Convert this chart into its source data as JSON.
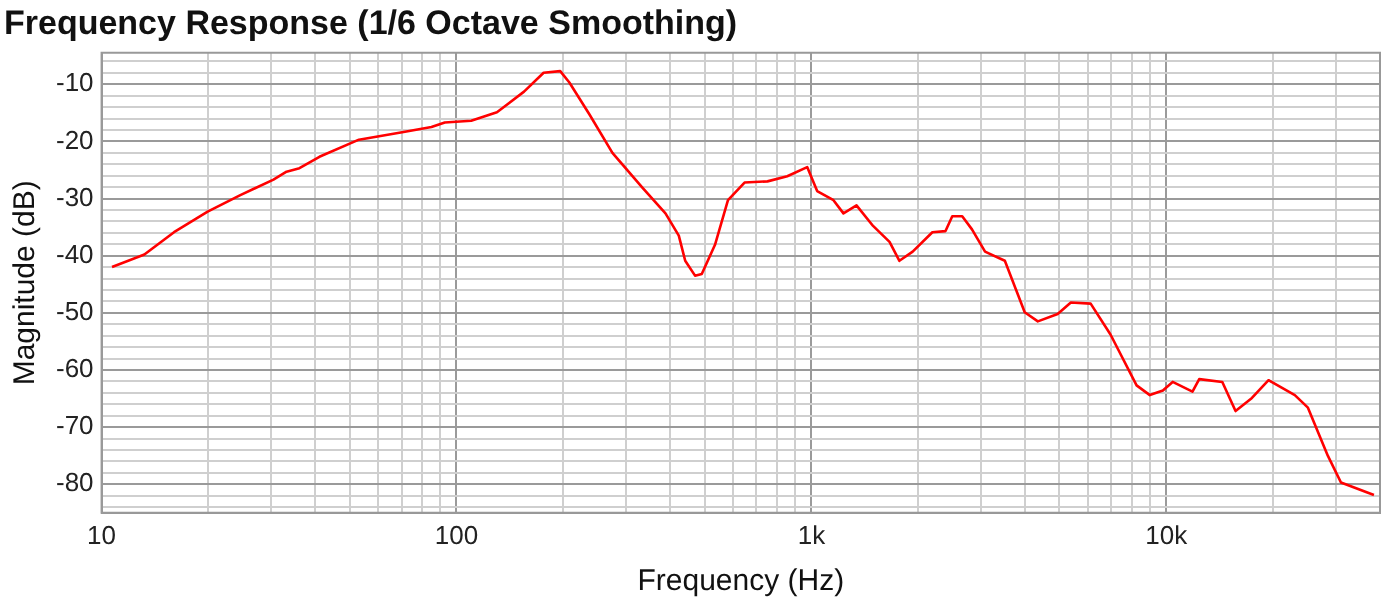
{
  "chart_data": {
    "type": "line",
    "title": "Frequency Response (1/6 Octave Smoothing)",
    "xlabel": "Frequency (Hz)",
    "ylabel": "Magnitude (dB)",
    "log": "x",
    "grid": true,
    "marker": "none",
    "line_style": "solid",
    "xlim": [
      10,
      40000
    ],
    "ylim": [
      -85,
      -4.5
    ],
    "xticks": [
      10,
      {
        "value": 20,
        "label": null
      },
      {
        "value": 30,
        "label": null
      },
      {
        "value": 40,
        "label": null
      },
      {
        "value": 50,
        "label": null
      },
      {
        "value": 60,
        "label": null
      },
      {
        "value": 70,
        "label": null
      },
      {
        "value": 80,
        "label": null
      },
      {
        "value": 90,
        "label": null
      },
      100,
      {
        "value": 200,
        "label": null
      },
      {
        "value": 300,
        "label": null
      },
      {
        "value": 400,
        "label": null
      },
      {
        "value": 500,
        "label": null
      },
      {
        "value": 600,
        "label": null
      },
      {
        "value": 700,
        "label": null
      },
      {
        "value": 800,
        "label": null
      },
      {
        "value": 900,
        "label": null
      },
      {
        "value": 1000,
        "label": "1k"
      },
      {
        "value": 2000,
        "label": null
      },
      {
        "value": 3000,
        "label": null
      },
      {
        "value": 4000,
        "label": null
      },
      {
        "value": 5000,
        "label": null
      },
      {
        "value": 6000,
        "label": null
      },
      {
        "value": 7000,
        "label": null
      },
      {
        "value": 8000,
        "label": null
      },
      {
        "value": 9000,
        "label": null
      },
      {
        "value": 10000,
        "label": "10k"
      },
      {
        "value": 20000,
        "label": null
      },
      {
        "value": 30000,
        "label": null
      }
    ],
    "yticks": [
      {
        "value": -84,
        "label": null
      },
      {
        "value": -82,
        "label": null
      },
      -80,
      {
        "value": -78,
        "label": null
      },
      {
        "value": -76,
        "label": null
      },
      {
        "value": -74,
        "label": null
      },
      {
        "value": -72,
        "label": null
      },
      -70,
      {
        "value": -68,
        "label": null
      },
      {
        "value": -66,
        "label": null
      },
      {
        "value": -64,
        "label": null
      },
      {
        "value": -62,
        "label": null
      },
      -60,
      {
        "value": -58,
        "label": null
      },
      {
        "value": -56,
        "label": null
      },
      {
        "value": -54,
        "label": null
      },
      {
        "value": -52,
        "label": null
      },
      -50,
      {
        "value": -48,
        "label": null
      },
      {
        "value": -46,
        "label": null
      },
      {
        "value": -44,
        "label": null
      },
      {
        "value": -42,
        "label": null
      },
      -40,
      {
        "value": -38,
        "label": null
      },
      {
        "value": -36,
        "label": null
      },
      {
        "value": -34,
        "label": null
      },
      {
        "value": -32,
        "label": null
      },
      -30,
      {
        "value": -28,
        "label": null
      },
      {
        "value": -26,
        "label": null
      },
      {
        "value": -24,
        "label": null
      },
      {
        "value": -22,
        "label": null
      },
      -20,
      {
        "value": -18,
        "label": null
      },
      {
        "value": -16,
        "label": null
      },
      {
        "value": -14,
        "label": null
      },
      {
        "value": -12,
        "label": null
      },
      -10,
      {
        "value": -8,
        "label": null
      },
      {
        "value": -6,
        "label": null
      }
    ],
    "x": [
      10.7,
      13.2,
      16,
      19.9,
      24.6,
      30.5,
      33.2,
      36.1,
      41.1,
      53.1,
      71.6,
      85,
      92.7,
      110,
      130,
      155,
      176,
      196,
      208,
      237,
      275,
      334,
      388,
      423,
      441,
      470,
      491,
      535,
      582,
      648,
      752,
      855,
      973,
      1038,
      1154,
      1231,
      1340,
      1492,
      1660,
      1770,
      1929,
      2192,
      2387,
      2494,
      2660,
      2834,
      3085,
      3508,
      3990,
      4345,
      4941,
      5383,
      6121,
      6961,
      8245,
      8986,
      9780,
      10420,
      11850,
      12380,
      14380,
      15670,
      17430,
      19410,
      23020,
      25060,
      28510,
      31050,
      38460
    ],
    "series": [
      {
        "color": "#ff0000",
        "values": [
          -42,
          -39.8,
          -35.9,
          -32.3,
          -29.4,
          -26.7,
          -25.3,
          -24.7,
          -22.7,
          -19.7,
          -18.3,
          -17.5,
          -16.7,
          -16.4,
          -14.9,
          -11.3,
          -8,
          -7.7,
          -9.7,
          -15.3,
          -22,
          -28.1,
          -32.6,
          -36.5,
          -40.9,
          -43.5,
          -43.2,
          -38.1,
          -30.3,
          -27.2,
          -27,
          -26.1,
          -24.5,
          -28.7,
          -30.3,
          -32.6,
          -31.2,
          -34.8,
          -37.6,
          -40.9,
          -39.3,
          -35.9,
          -35.7,
          -33.1,
          -33.1,
          -35.4,
          -39.3,
          -40.9,
          -49.9,
          -51.5,
          -50.2,
          -48.2,
          -48.4,
          -53.8,
          -62.7,
          -64.4,
          -63.6,
          -62.1,
          -63.8,
          -61.6,
          -62.1,
          -67.2,
          -64.9,
          -61.8,
          -64.4,
          -66.6,
          -75,
          -79.7,
          -81.9
        ]
      }
    ]
  }
}
